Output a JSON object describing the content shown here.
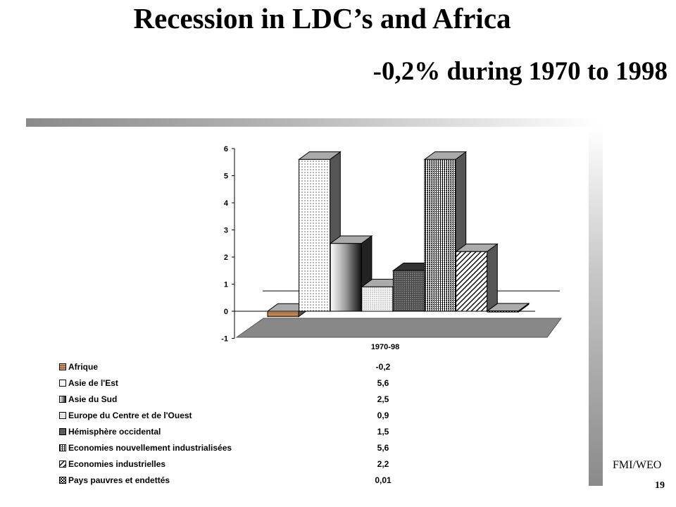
{
  "slide": {
    "title": "Recession in LDC’s and Africa",
    "subtitle": "-0,2% during 1970 to 1998",
    "source": "FMI/WEO",
    "page_number": "19"
  },
  "chart_data": {
    "type": "bar",
    "title": "",
    "xlabel": "",
    "ylabel": "",
    "categories": [
      "1970-98"
    ],
    "ylim": [
      -1,
      6
    ],
    "yticks": [
      "-1",
      "0",
      "1",
      "2",
      "3",
      "4",
      "5",
      "6"
    ],
    "grid": false,
    "three_d": true,
    "series": [
      {
        "name": "Afrique",
        "values": [
          -0.2
        ],
        "label": "-0,2",
        "color": "#d8a070"
      },
      {
        "name": "Asie de l'Est",
        "values": [
          5.6
        ],
        "label": "5,6",
        "color": "#ffffff"
      },
      {
        "name": "Asie du Sud",
        "values": [
          2.5
        ],
        "label": "2,5",
        "color": "#c8c8c8"
      },
      {
        "name": "Europe du Centre et de l'Ouest",
        "values": [
          0.9
        ],
        "label": "0,9",
        "color": "#ffffff"
      },
      {
        "name": "Hémisphère occidental",
        "values": [
          1.5
        ],
        "label": "1,5",
        "color": "#888888"
      },
      {
        "name": "Economies nouvellement industrialisées",
        "values": [
          5.6
        ],
        "label": "5,6",
        "color": "#bbbbbb"
      },
      {
        "name": "Economies industrielles",
        "values": [
          2.2
        ],
        "label": "2,2",
        "color": "#ffffff"
      },
      {
        "name": "Pays pauvres et endettés",
        "values": [
          0.01
        ],
        "label": "0,01",
        "color": "#888888"
      }
    ]
  }
}
